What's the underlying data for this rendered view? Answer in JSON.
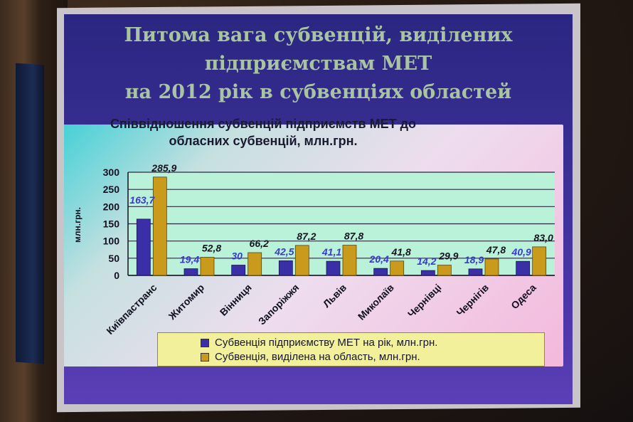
{
  "slide": {
    "title_lines": [
      "Питома вага субвенцій, виділених",
      "підприємствам МЕТ",
      "на 2012 рік в субвенціях областей"
    ]
  },
  "chart_data": {
    "type": "bar",
    "title": "Співвідношення субвенцій підприємств МЕТ до обласних субвенцій, млн.грн.",
    "title_lines": [
      "Співвідношення субвенцій підприємств МЕТ до",
      "обласних субвенцій, млн.грн."
    ],
    "ylabel": "млн.грн.",
    "ylim": [
      0,
      300
    ],
    "yticks": [
      0,
      50,
      100,
      150,
      200,
      250,
      300
    ],
    "grid": true,
    "legend_position": "bottom",
    "categories": [
      "Київпастранс",
      "Житомир",
      "Вінниця",
      "Запоріжжя",
      "Львів",
      "Миколаїв",
      "Чернівці",
      "Чернігів",
      "Одеса"
    ],
    "series": [
      {
        "name": "Субвенція підприємству МЕТ на рік, млн.грн.",
        "color": "#3b2fa8",
        "values": [
          163.7,
          19.4,
          30,
          42.5,
          41.1,
          20.4,
          14.2,
          18.9,
          40.9
        ],
        "labels": [
          "163,7",
          "19,4",
          "30",
          "42,5",
          "41,1",
          "20,4",
          "14,2",
          "18,9",
          "40,9"
        ]
      },
      {
        "name": "Субвенція, виділена на область, млн.грн.",
        "color": "#c99a1c",
        "values": [
          285.9,
          52.8,
          66.2,
          87.2,
          87.8,
          41.8,
          29.9,
          47.8,
          83.0
        ],
        "labels": [
          "285,9",
          "52,8",
          "66,2",
          "87,2",
          "87,8",
          "41,8",
          "29,9",
          "47,8",
          "83,0"
        ]
      }
    ]
  }
}
